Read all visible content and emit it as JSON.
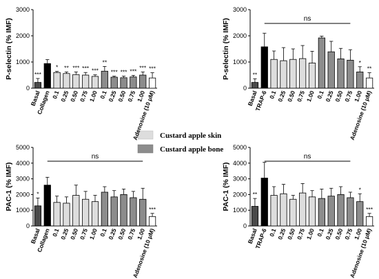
{
  "colors": {
    "dark": "#4a4a4a",
    "black": "#000000",
    "light": "#dddddd",
    "mid": "#8c8c8c",
    "white": "#ffffff"
  },
  "legend": {
    "items": [
      {
        "label": "Custard apple skin",
        "color": "#dddddd"
      },
      {
        "label": "Custard apple bone",
        "color": "#8c8c8c"
      }
    ]
  },
  "chart_data": [
    {
      "type": "bar",
      "ylabel": "P-selectin (% IMF)",
      "ylim": [
        0,
        3000
      ],
      "yticks": [
        0,
        1000,
        2000,
        3000
      ],
      "categories": [
        "Basal",
        "Collagen",
        "0.1",
        "0.25",
        "0.50",
        "0.75",
        "1.00",
        "0.1",
        "0.25",
        "0.50",
        "0.75",
        "1.00",
        "Adenosine (10 μM)"
      ],
      "values": [
        220,
        940,
        600,
        560,
        520,
        500,
        450,
        650,
        420,
        400,
        430,
        500,
        390
      ],
      "errors": [
        150,
        150,
        40,
        60,
        100,
        100,
        60,
        180,
        40,
        60,
        60,
        120,
        200
      ],
      "colors": [
        "#4a4a4a",
        "#000000",
        "#dddddd",
        "#dddddd",
        "#dddddd",
        "#dddddd",
        "#dddddd",
        "#8c8c8c",
        "#8c8c8c",
        "#8c8c8c",
        "#8c8c8c",
        "#8c8c8c",
        "#ffffff"
      ],
      "significance": [
        "***",
        "",
        "*",
        "**",
        "***",
        "***",
        "***",
        "**",
        "***",
        "***",
        "***",
        "***",
        "***"
      ],
      "ns": null
    },
    {
      "type": "bar",
      "ylabel": "P-selectin (% IMF)",
      "ylim": [
        0,
        3000
      ],
      "yticks": [
        0,
        1000,
        2000,
        3000
      ],
      "categories": [
        "Basal",
        "TRAP-6",
        "0.1",
        "0.25",
        "0.50",
        "0.75",
        "1.00",
        "0.1",
        "0.25",
        "0.50",
        "0.75",
        "1.00",
        "Adenosine (10 μM)"
      ],
      "values": [
        220,
        1580,
        1100,
        1050,
        1100,
        1130,
        960,
        1920,
        1390,
        1120,
        1070,
        620,
        390
      ],
      "errors": [
        140,
        520,
        320,
        500,
        400,
        500,
        450,
        70,
        400,
        400,
        400,
        200,
        200
      ],
      "colors": [
        "#4a4a4a",
        "#000000",
        "#dddddd",
        "#dddddd",
        "#dddddd",
        "#dddddd",
        "#dddddd",
        "#8c8c8c",
        "#8c8c8c",
        "#8c8c8c",
        "#8c8c8c",
        "#8c8c8c",
        "#ffffff"
      ],
      "significance": [
        "**",
        "",
        "",
        "",
        "",
        "",
        "",
        "",
        "",
        "",
        "",
        "*",
        "**"
      ],
      "ns": {
        "label": "ns",
        "from": 1,
        "to": 10
      }
    },
    {
      "type": "bar",
      "ylabel": "PAC-1 (% IMF)",
      "ylim": [
        0,
        5000
      ],
      "yticks": [
        0,
        1000,
        2000,
        3000,
        4000,
        5000
      ],
      "categories": [
        "Basal",
        "Collagen",
        "0.1",
        "0.25",
        "0.50",
        "0.75",
        "1.00",
        "0.1",
        "0.25",
        "0.50",
        "0.75",
        "1.00",
        "Adenosine (10 μM)"
      ],
      "values": [
        1280,
        2600,
        1500,
        1450,
        1950,
        1700,
        1550,
        2150,
        1850,
        2000,
        1800,
        1700,
        600
      ],
      "errors": [
        500,
        500,
        400,
        400,
        650,
        500,
        400,
        350,
        400,
        350,
        400,
        700,
        200
      ],
      "colors": [
        "#4a4a4a",
        "#000000",
        "#dddddd",
        "#dddddd",
        "#dddddd",
        "#dddddd",
        "#dddddd",
        "#8c8c8c",
        "#8c8c8c",
        "#8c8c8c",
        "#8c8c8c",
        "#8c8c8c",
        "#ffffff"
      ],
      "significance": [
        "*",
        "",
        "",
        "",
        "",
        "",
        "",
        "",
        "",
        "",
        "",
        "",
        "***"
      ],
      "ns": {
        "label": "ns",
        "from": 1,
        "to": 11
      }
    },
    {
      "type": "bar",
      "ylabel": "PAC-1 (% IMF)",
      "ylim": [
        0,
        5000
      ],
      "yticks": [
        0,
        1000,
        2000,
        3000,
        4000,
        5000
      ],
      "categories": [
        "Basal",
        "TRAP-6",
        "0.1",
        "0.25",
        "0.50",
        "0.75",
        "1.00",
        "0.1",
        "0.25",
        "0.50",
        "0.75",
        "1.00",
        "Adenosine (10 μM)"
      ],
      "values": [
        1250,
        3050,
        1950,
        2050,
        1700,
        2100,
        1850,
        1750,
        1900,
        2000,
        1800,
        1550,
        600
      ],
      "errors": [
        500,
        1000,
        550,
        600,
        250,
        600,
        400,
        600,
        500,
        500,
        350,
        500,
        200
      ],
      "colors": [
        "#4a4a4a",
        "#000000",
        "#dddddd",
        "#dddddd",
        "#dddddd",
        "#dddddd",
        "#dddddd",
        "#8c8c8c",
        "#8c8c8c",
        "#8c8c8c",
        "#8c8c8c",
        "#8c8c8c",
        "#ffffff"
      ],
      "significance": [
        "**",
        "",
        "",
        "",
        "",
        "",
        "",
        "",
        "",
        "",
        "",
        "*",
        "***"
      ],
      "ns": {
        "label": "ns",
        "from": 1,
        "to": 10
      }
    }
  ]
}
